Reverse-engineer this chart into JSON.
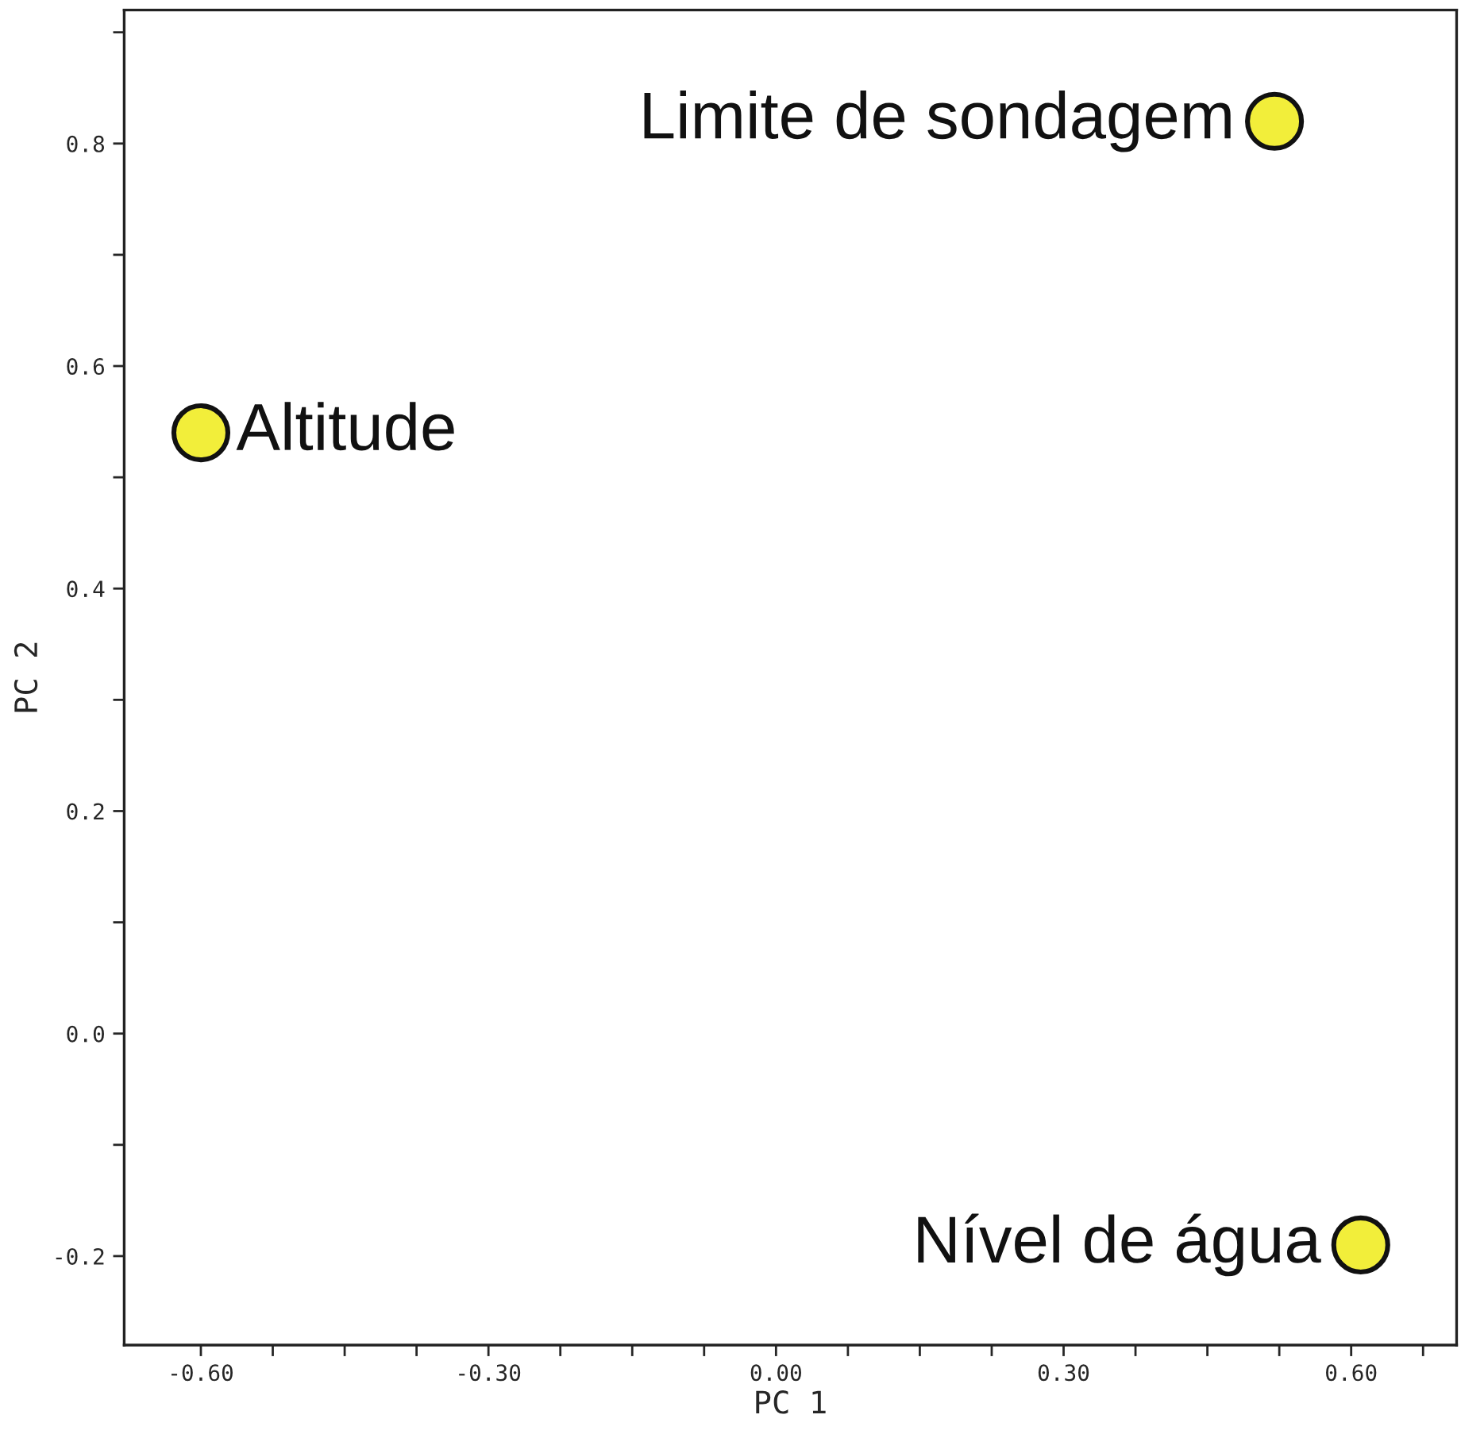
{
  "chart_data": {
    "type": "scatter",
    "xlabel": "PC 1",
    "ylabel": "PC 2",
    "x": [
      -0.6,
      0.52,
      0.61
    ],
    "series": [
      {
        "color": "#f2ee3a",
        "values": [
          0.54,
          0.82,
          -0.19
        ]
      }
    ],
    "marker": "circle",
    "annotations": [
      {
        "text": "Altitude",
        "x": -0.6,
        "y": 0.54
      },
      {
        "text": "Limite de sondagem",
        "x": 0.52,
        "y": 0.82
      },
      {
        "text": "Nível de água",
        "x": 0.61,
        "y": -0.19
      }
    ],
    "xlim": [
      -0.68,
      0.71
    ],
    "ylim": [
      -0.28,
      0.92
    ],
    "xticks": [
      {
        "value": -0.6,
        "label": "-0.60"
      },
      {
        "value": -0.525,
        "label": null
      },
      {
        "value": -0.45,
        "label": null
      },
      {
        "value": -0.375,
        "label": null
      },
      {
        "value": -0.3,
        "label": "-0.30"
      },
      {
        "value": -0.225,
        "label": null
      },
      {
        "value": -0.15,
        "label": null
      },
      {
        "value": -0.075,
        "label": null
      },
      {
        "value": 0,
        "label": "0.00"
      },
      {
        "value": 0.075,
        "label": null
      },
      {
        "value": 0.15,
        "label": null
      },
      {
        "value": 0.225,
        "label": null
      },
      {
        "value": 0.3,
        "label": "0.30"
      },
      {
        "value": 0.375,
        "label": null
      },
      {
        "value": 0.45,
        "label": null
      },
      {
        "value": 0.525,
        "label": null
      },
      {
        "value": 0.6,
        "label": "0.60"
      },
      {
        "value": 0.675,
        "label": null
      }
    ],
    "yticks": [
      {
        "value": -0.2,
        "label": "-0.2"
      },
      {
        "value": -0.1,
        "label": null
      },
      {
        "value": 0,
        "label": "0.0"
      },
      {
        "value": 0.1,
        "label": null
      },
      {
        "value": 0.2,
        "label": "0.2"
      },
      {
        "value": 0.3,
        "label": null
      },
      {
        "value": 0.4,
        "label": "0.4"
      },
      {
        "value": 0.5,
        "label": null
      },
      {
        "value": 0.6,
        "label": "0.6"
      },
      {
        "value": 0.7,
        "label": null
      },
      {
        "value": 0.8,
        "label": "0.8"
      },
      {
        "value": 0.9,
        "label": null
      }
    ],
    "grid": false
  }
}
